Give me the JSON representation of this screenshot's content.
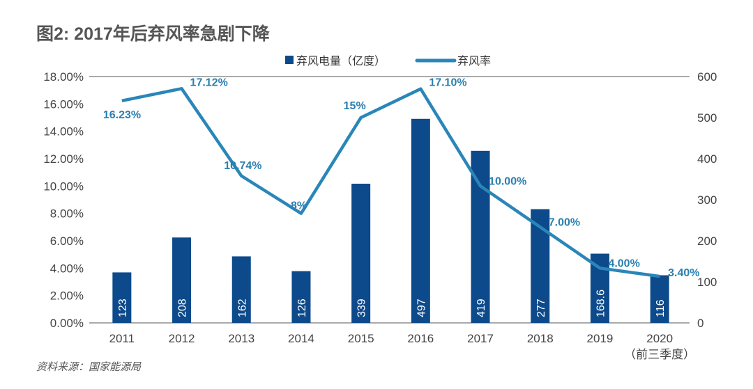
{
  "chart_data": {
    "type": "bar+line",
    "title": "图2: 2017年后弃风率急剧下降",
    "source": "资料来源：国家能源局",
    "categories": [
      "2011",
      "2012",
      "2013",
      "2014",
      "2015",
      "2016",
      "2017",
      "2018",
      "2019",
      "2020"
    ],
    "category_sublabels": {
      "2020": "（前三季度）"
    },
    "series": [
      {
        "name": "弃风电量（亿度）",
        "type": "bar",
        "axis": "right",
        "color": "#0d4a8b",
        "values": [
          123,
          208,
          162,
          126,
          339,
          497,
          419,
          277,
          168.6,
          116
        ],
        "labels": [
          "123",
          "208",
          "162",
          "126",
          "339",
          "497",
          "419",
          "277",
          "168.6",
          "116"
        ]
      },
      {
        "name": "弃风率",
        "type": "line",
        "axis": "left",
        "color": "#2a86b8",
        "values": [
          16.23,
          17.12,
          10.74,
          8,
          15,
          17.1,
          10.0,
          7.0,
          4.0,
          3.4
        ],
        "labels": [
          "16.23%",
          "17.12%",
          "10.74%",
          "8%",
          "15%",
          "17.10%",
          "10.00%",
          "7.00%",
          "4.00%",
          "3.40%"
        ]
      }
    ],
    "y_left": {
      "range": [
        0,
        18
      ],
      "ticks": [
        "0.00%",
        "2.00%",
        "4.00%",
        "6.00%",
        "8.00%",
        "10.00%",
        "12.00%",
        "14.00%",
        "16.00%",
        "18.00%"
      ]
    },
    "y_right": {
      "range": [
        0,
        600
      ],
      "ticks": [
        "0",
        "100",
        "200",
        "300",
        "400",
        "500",
        "600"
      ]
    },
    "grid": false,
    "legend_placement": "top-center"
  }
}
